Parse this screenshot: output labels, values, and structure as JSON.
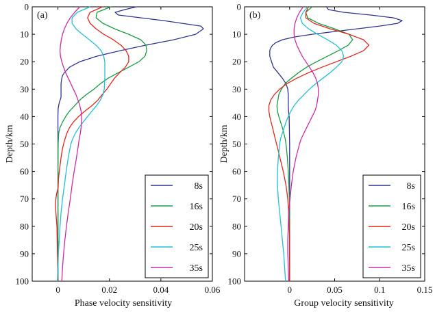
{
  "chart_data": [
    {
      "type": "line",
      "panel_label": "(a)",
      "xlabel": "Phase velocity sensitivity",
      "ylabel": "Depth/km",
      "xlim": [
        -0.01,
        0.06
      ],
      "ylim": [
        0,
        100
      ],
      "y_inverted": true,
      "xticks": [
        0,
        0.02,
        0.04,
        0.06
      ],
      "xtick_labels": [
        "0",
        "0.02",
        "0.04",
        "0.06"
      ],
      "yticks": [
        0,
        10,
        20,
        30,
        40,
        50,
        60,
        70,
        80,
        90,
        100
      ],
      "ytick_labels": [
        "0",
        "10",
        "20",
        "30",
        "40",
        "50",
        "60",
        "70",
        "80",
        "90",
        "100"
      ],
      "legend_position": "lower-right",
      "series": [
        {
          "name": "8s",
          "color": "#2e3192",
          "depth": [
            0,
            1,
            2,
            3,
            5,
            7,
            8,
            10,
            12,
            14,
            16,
            18,
            20,
            22,
            24,
            25,
            26,
            28,
            30,
            33,
            35,
            37,
            40,
            50,
            60,
            70,
            80,
            90,
            100
          ],
          "values": [
            0.0305,
            0.026,
            0.0222,
            0.0235,
            0.041,
            0.0555,
            0.0565,
            0.0535,
            0.045,
            0.034,
            0.024,
            0.015,
            0.0085,
            0.0045,
            0.0025,
            0.0018,
            0.0015,
            0.0012,
            0.0012,
            0.0012,
            0.0005,
            0.0001,
            0,
            0,
            0,
            0,
            0,
            0,
            0
          ]
        },
        {
          "name": "16s",
          "color": "#169c43",
          "depth": [
            0,
            2,
            4,
            6,
            8,
            10,
            12,
            14,
            16,
            18,
            20,
            22,
            24,
            26,
            28,
            30,
            32,
            34,
            36,
            38,
            40,
            42,
            44,
            46,
            50,
            60,
            70,
            80,
            90,
            100
          ],
          "values": [
            0.0205,
            0.0152,
            0.0148,
            0.0175,
            0.022,
            0.0275,
            0.0322,
            0.0342,
            0.0345,
            0.0338,
            0.0315,
            0.0275,
            0.0235,
            0.0195,
            0.0165,
            0.014,
            0.011,
            0.0085,
            0.0065,
            0.0045,
            0.003,
            0.0018,
            0.0008,
            0.0003,
            0.0001,
            0,
            0,
            0,
            0,
            0
          ]
        },
        {
          "name": "20s",
          "color": "#e2231a",
          "depth": [
            0,
            2,
            4,
            6,
            8,
            10,
            12,
            14,
            16,
            18,
            20,
            22,
            24,
            26,
            28,
            30,
            32,
            34,
            36,
            38,
            40,
            42,
            44,
            46,
            48,
            50,
            52,
            55,
            58,
            60,
            63,
            66,
            68,
            70,
            72,
            75,
            80,
            90,
            100
          ],
          "values": [
            0.0173,
            0.0125,
            0.0115,
            0.0125,
            0.0148,
            0.0178,
            0.0215,
            0.0245,
            0.0265,
            0.0275,
            0.0275,
            0.0262,
            0.024,
            0.022,
            0.0205,
            0.019,
            0.0172,
            0.0155,
            0.0132,
            0.0105,
            0.008,
            0.006,
            0.0045,
            0.0035,
            0.0028,
            0.0022,
            0.0017,
            0.0012,
            0.0008,
            0.0005,
            0.0002,
            0.0001,
            -0.0005,
            -0.0008,
            -0.001,
            -0.0008,
            -0.0004,
            -0.0002,
            0
          ]
        },
        {
          "name": "25s",
          "color": "#1ec0d6",
          "depth": [
            0,
            2,
            4,
            6,
            8,
            10,
            12,
            14,
            16,
            18,
            20,
            22,
            24,
            26,
            28,
            30,
            32,
            34,
            36,
            38,
            40,
            42,
            44,
            46,
            48,
            50,
            55,
            60,
            65,
            70,
            75,
            80,
            90,
            100
          ],
          "values": [
            0.0125,
            0.0075,
            0.0055,
            0.0055,
            0.007,
            0.0095,
            0.0122,
            0.0148,
            0.0168,
            0.0178,
            0.0182,
            0.0182,
            0.0182,
            0.0182,
            0.0181,
            0.018,
            0.0175,
            0.0165,
            0.015,
            0.0132,
            0.0115,
            0.0098,
            0.0082,
            0.0068,
            0.0058,
            0.005,
            0.004,
            0.0032,
            0.0025,
            0.0018,
            0.0012,
            0.0008,
            0.0002,
            -0.0002
          ]
        },
        {
          "name": "35s",
          "color": "#cc2aa3",
          "depth": [
            0,
            2,
            4,
            6,
            8,
            10,
            12,
            14,
            16,
            18,
            20,
            22,
            24,
            26,
            28,
            30,
            32,
            34,
            36,
            38,
            40,
            42,
            44,
            46,
            48,
            50,
            55,
            60,
            65,
            70,
            75,
            80,
            85,
            90,
            95,
            100
          ],
          "values": [
            0.0085,
            0.0065,
            0.0048,
            0.0035,
            0.0025,
            0.0018,
            0.0013,
            0.001,
            0.0008,
            0.001,
            0.0015,
            0.0022,
            0.003,
            0.004,
            0.005,
            0.006,
            0.007,
            0.0078,
            0.0085,
            0.009,
            0.0092,
            0.0092,
            0.009,
            0.0087,
            0.0083,
            0.008,
            0.0072,
            0.0063,
            0.0055,
            0.0048,
            0.004,
            0.0033,
            0.0027,
            0.0022,
            0.0018,
            0.0015
          ]
        }
      ]
    },
    {
      "type": "line",
      "panel_label": "(b)",
      "xlabel": "Group velocity sensitivity",
      "ylabel": "Depth/km",
      "xlim": [
        -0.05,
        0.15
      ],
      "ylim": [
        0,
        100
      ],
      "y_inverted": true,
      "xticks": [
        0,
        0.05,
        0.1,
        0.15
      ],
      "xtick_labels": [
        "0",
        "0.05",
        "0.1",
        "0.15"
      ],
      "yticks": [
        0,
        10,
        20,
        30,
        40,
        50,
        60,
        70,
        80,
        90,
        100
      ],
      "ytick_labels": [
        "0",
        "10",
        "20",
        "30",
        "40",
        "50",
        "60",
        "70",
        "80",
        "90",
        "100"
      ],
      "legend_position": "lower-right",
      "series": [
        {
          "name": "8s",
          "color": "#2e3192",
          "depth": [
            0,
            1,
            2,
            3,
            4,
            5,
            6,
            7,
            8,
            9,
            10,
            11,
            12,
            13,
            14,
            15,
            16,
            17,
            18,
            19,
            20,
            22,
            24,
            26,
            28,
            30,
            32,
            34,
            36,
            38,
            40,
            50,
            60,
            70,
            80,
            90,
            100
          ],
          "values": [
            0.041,
            0.043,
            0.06,
            0.09,
            0.115,
            0.125,
            0.12,
            0.1,
            0.075,
            0.05,
            0.025,
            0.005,
            -0.008,
            -0.015,
            -0.019,
            -0.021,
            -0.022,
            -0.022,
            -0.022,
            -0.021,
            -0.02,
            -0.018,
            -0.013,
            -0.008,
            -0.004,
            -0.002,
            -0.0015,
            -0.0015,
            -0.0015,
            -0.0012,
            -0.0005,
            0,
            0,
            0,
            0,
            0,
            0
          ]
        },
        {
          "name": "16s",
          "color": "#169c43",
          "depth": [
            0,
            2,
            4,
            6,
            8,
            10,
            12,
            14,
            16,
            18,
            20,
            22,
            24,
            26,
            28,
            30,
            32,
            34,
            36,
            38,
            40,
            44,
            48,
            50,
            55,
            60,
            65,
            70,
            80,
            90,
            100
          ],
          "values": [
            0.025,
            0.018,
            0.02,
            0.032,
            0.05,
            0.066,
            0.07,
            0.065,
            0.054,
            0.042,
            0.03,
            0.019,
            0.01,
            0.002,
            -0.005,
            -0.009,
            -0.012,
            -0.013,
            -0.014,
            -0.0135,
            -0.012,
            -0.008,
            -0.005,
            -0.004,
            -0.0025,
            -0.0015,
            -0.0008,
            -0.0003,
            0,
            0,
            0
          ]
        },
        {
          "name": "20s",
          "color": "#e2231a",
          "depth": [
            0,
            2,
            4,
            6,
            8,
            10,
            12,
            14,
            16,
            18,
            20,
            22,
            24,
            26,
            28,
            30,
            32,
            34,
            36,
            38,
            40,
            44,
            48,
            52,
            56,
            60,
            65,
            70,
            75,
            80,
            85,
            88,
            90,
            95,
            100
          ],
          "values": [
            0.021,
            0.018,
            0.018,
            0.027,
            0.045,
            0.066,
            0.082,
            0.088,
            0.082,
            0.068,
            0.052,
            0.036,
            0.021,
            0.008,
            -0.003,
            -0.011,
            -0.017,
            -0.021,
            -0.023,
            -0.023,
            -0.022,
            -0.019,
            -0.016,
            -0.013,
            -0.01,
            -0.007,
            -0.004,
            -0.002,
            -0.001,
            -0.0005,
            0,
            0,
            0,
            0,
            0
          ]
        },
        {
          "name": "25s",
          "color": "#1ec0d6",
          "depth": [
            0,
            2,
            4,
            6,
            8,
            10,
            12,
            14,
            16,
            18,
            20,
            22,
            24,
            26,
            28,
            30,
            32,
            34,
            36,
            38,
            40,
            42,
            44,
            46,
            48,
            50,
            55,
            60,
            65,
            70,
            75,
            80,
            85,
            90,
            95,
            100
          ],
          "values": [
            0.02,
            0.015,
            0.012,
            0.014,
            0.021,
            0.031,
            0.042,
            0.052,
            0.058,
            0.06,
            0.058,
            0.052,
            0.045,
            0.037,
            0.029,
            0.022,
            0.016,
            0.01,
            0.005,
            0.0015,
            -0.0015,
            -0.004,
            -0.006,
            -0.008,
            -0.01,
            -0.011,
            -0.0125,
            -0.0135,
            -0.0135,
            -0.0125,
            -0.011,
            -0.0095,
            -0.008,
            -0.0065,
            -0.0055,
            -0.0045
          ]
        },
        {
          "name": "35s",
          "color": "#cc2aa3",
          "depth": [
            0,
            2,
            4,
            6,
            8,
            10,
            12,
            14,
            16,
            18,
            20,
            22,
            24,
            26,
            28,
            30,
            32,
            34,
            36,
            38,
            40,
            42,
            44,
            46,
            48,
            50,
            55,
            60,
            65,
            70,
            75,
            80,
            85,
            90,
            95,
            100
          ],
          "values": [
            0.015,
            0.011,
            0.008,
            0.006,
            0.005,
            0.005,
            0.006,
            0.008,
            0.011,
            0.014,
            0.018,
            0.022,
            0.026,
            0.029,
            0.031,
            0.032,
            0.032,
            0.031,
            0.03,
            0.028,
            0.025,
            0.022,
            0.019,
            0.016,
            0.013,
            0.011,
            0.007,
            0.004,
            0.002,
            0.0005,
            -0.001,
            -0.0015,
            -0.002,
            -0.002,
            -0.0015,
            -0.001
          ]
        }
      ]
    }
  ]
}
